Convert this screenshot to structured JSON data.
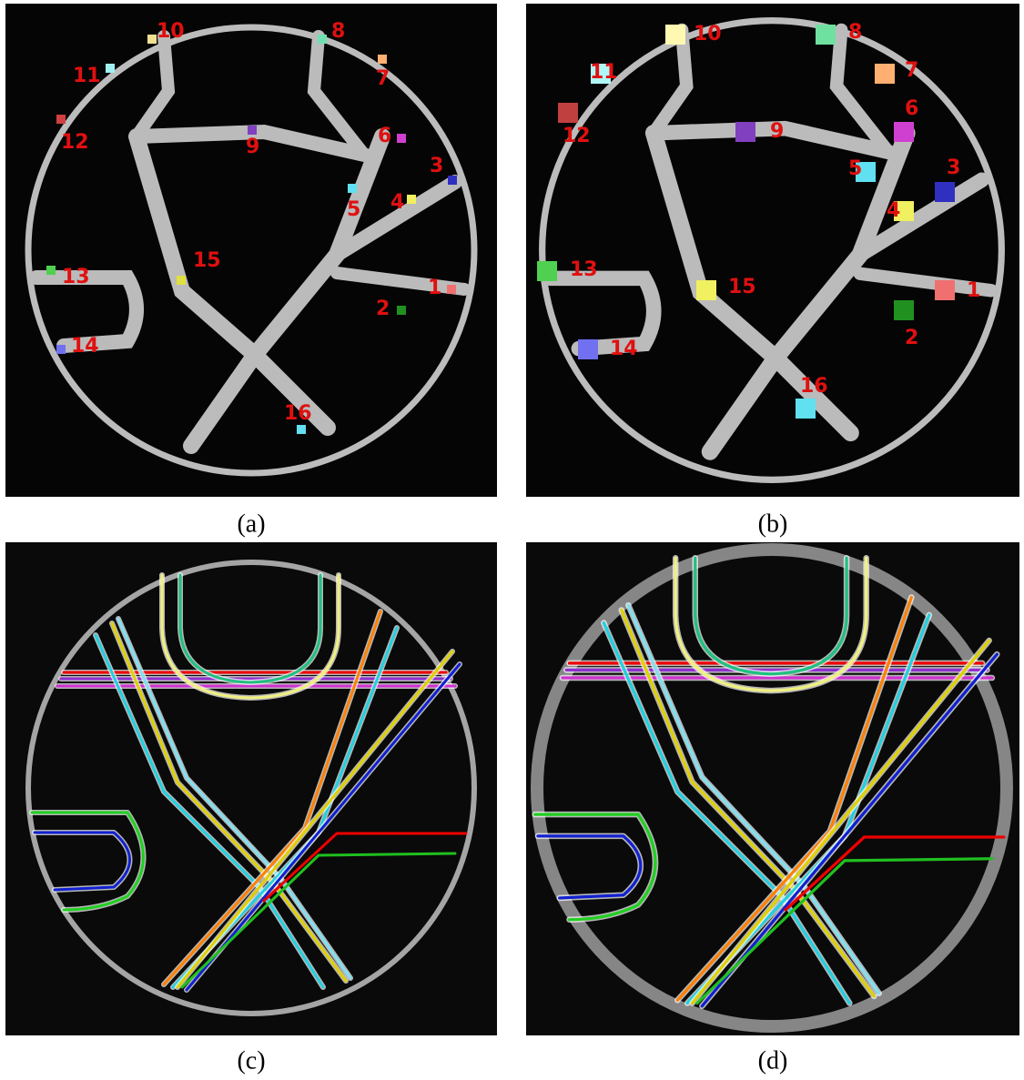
{
  "panels": [
    {
      "caption": "(a)",
      "labels": [
        "1",
        "2",
        "3",
        "4",
        "5",
        "6",
        "7",
        "8",
        "9",
        "10",
        "11",
        "12",
        "13",
        "14",
        "15",
        "16"
      ]
    },
    {
      "caption": "(b)",
      "labels": [
        "1",
        "2",
        "3",
        "4",
        "5",
        "6",
        "7",
        "8",
        "9",
        "10",
        "11",
        "12",
        "13",
        "14",
        "15",
        "16"
      ]
    },
    {
      "caption": "(c)"
    },
    {
      "caption": "(d)"
    }
  ]
}
